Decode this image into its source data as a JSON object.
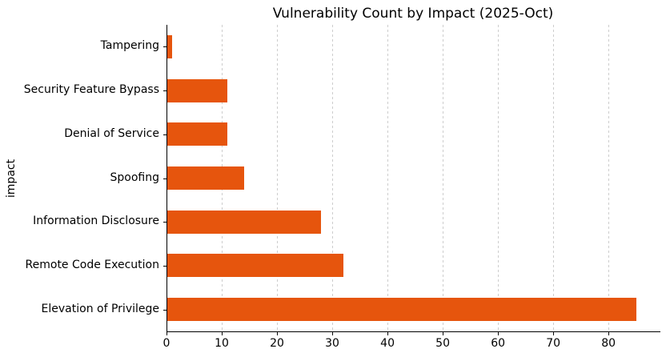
{
  "figure": {
    "title": "Vulnerability Count by Impact (2025-Oct)"
  },
  "chart_data": {
    "type": "bar",
    "orientation": "horizontal",
    "title": "Vulnerability Count by Impact (2025-Oct)",
    "xlabel": "",
    "ylabel": "impact",
    "categories": [
      "Tampering",
      "Security Feature Bypass",
      "Denial of Service",
      "Spoofing",
      "Information Disclosure",
      "Remote Code Execution",
      "Elevation of Privilege"
    ],
    "values": [
      1,
      11,
      11,
      14,
      28,
      32,
      85
    ],
    "xticks": [
      0,
      10,
      20,
      30,
      40,
      50,
      60,
      70,
      80
    ],
    "xlim": [
      0,
      89.25
    ],
    "bar_color": "#e6550d",
    "gridline_color": "#cdcdcd",
    "grid": "vertical-dotted",
    "legend_visible": false
  }
}
